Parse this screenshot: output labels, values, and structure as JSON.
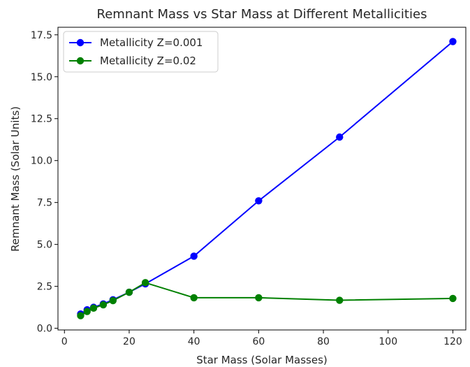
{
  "chart_data": {
    "type": "line",
    "title": "Remnant Mass vs Star Mass at Different Metallicities",
    "xlabel": "Star Mass (Solar Masses)",
    "ylabel": "Remnant Mass (Solar Units)",
    "xlim": [
      -2,
      124
    ],
    "ylim": [
      -0.1,
      17.95
    ],
    "xticks": [
      0,
      20,
      40,
      60,
      80,
      100,
      120
    ],
    "yticks": [
      0.0,
      2.5,
      5.0,
      7.5,
      10.0,
      12.5,
      15.0,
      17.5
    ],
    "xtick_labels": [
      "0",
      "20",
      "40",
      "60",
      "80",
      "100",
      "120"
    ],
    "ytick_labels": [
      "0.0",
      "2.5",
      "5.0",
      "7.5",
      "10.0",
      "12.5",
      "15.0",
      "17.5"
    ],
    "grid": false,
    "legend_position": "top-left",
    "series": [
      {
        "name": "Metallicity Z=0.001",
        "color": "#0000ff",
        "marker": "circle",
        "x": [
          5,
          7,
          9,
          12,
          15,
          20,
          25,
          40,
          60,
          85,
          120
        ],
        "y": [
          0.85,
          1.1,
          1.25,
          1.45,
          1.7,
          2.15,
          2.65,
          4.3,
          7.6,
          11.4,
          17.1
        ]
      },
      {
        "name": "Metallicity Z=0.02",
        "color": "#008000",
        "marker": "circle",
        "x": [
          5,
          7,
          9,
          12,
          15,
          20,
          25,
          40,
          60,
          85,
          120
        ],
        "y": [
          0.75,
          1.0,
          1.2,
          1.4,
          1.65,
          2.15,
          2.72,
          1.82,
          1.82,
          1.67,
          1.78
        ]
      }
    ]
  }
}
